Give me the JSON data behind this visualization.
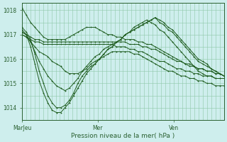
{
  "title": "",
  "xlabel": "Pression niveau de la mer( hPa )",
  "ylabel": "",
  "bg_color": "#ceeeed",
  "line_color": "#1e5c1e",
  "grid_color": "#8ec8a8",
  "axis_color": "#2a6030",
  "ylim": [
    1013.5,
    1018.3
  ],
  "xlim": [
    0,
    96
  ],
  "xtick_positions": [
    0,
    36,
    72
  ],
  "xtick_labels": [
    "MarJeu",
    "Mer",
    "Ven"
  ],
  "ytick_positions": [
    1014,
    1015,
    1016,
    1017,
    1018
  ],
  "series": [
    [
      1018.1,
      1017.8,
      1017.5,
      1017.3,
      1017.1,
      1016.9,
      1016.8,
      1016.8,
      1016.8,
      1016.8,
      1016.8,
      1016.9,
      1017.0,
      1017.1,
      1017.2,
      1017.3,
      1017.3,
      1017.3,
      1017.2,
      1017.1,
      1017.0,
      1017.0,
      1016.9,
      1016.9,
      1016.8,
      1016.8,
      1016.8,
      1016.7,
      1016.7,
      1016.6,
      1016.6,
      1016.5,
      1016.4,
      1016.3,
      1016.2,
      1016.1,
      1016.0,
      1015.9,
      1015.8,
      1015.8,
      1015.7,
      1015.6,
      1015.6,
      1015.5,
      1015.5,
      1015.4,
      1015.4,
      1015.3
    ],
    [
      1017.1,
      1017.0,
      1016.9,
      1016.8,
      1016.8,
      1016.7,
      1016.7,
      1016.7,
      1016.7,
      1016.7,
      1016.7,
      1016.7,
      1016.7,
      1016.7,
      1016.7,
      1016.7,
      1016.7,
      1016.7,
      1016.7,
      1016.7,
      1016.7,
      1016.7,
      1016.7,
      1016.7,
      1016.7,
      1016.6,
      1016.6,
      1016.6,
      1016.5,
      1016.5,
      1016.4,
      1016.4,
      1016.3,
      1016.2,
      1016.1,
      1016.0,
      1015.9,
      1015.9,
      1015.8,
      1015.7,
      1015.7,
      1015.6,
      1015.6,
      1015.5,
      1015.5,
      1015.4,
      1015.4,
      1015.3
    ],
    [
      1017.0,
      1016.9,
      1016.8,
      1016.7,
      1016.7,
      1016.6,
      1016.6,
      1016.6,
      1016.6,
      1016.6,
      1016.6,
      1016.6,
      1016.6,
      1016.6,
      1016.6,
      1016.6,
      1016.6,
      1016.6,
      1016.6,
      1016.6,
      1016.6,
      1016.6,
      1016.5,
      1016.5,
      1016.5,
      1016.4,
      1016.4,
      1016.3,
      1016.3,
      1016.2,
      1016.1,
      1016.0,
      1015.9,
      1015.9,
      1015.8,
      1015.7,
      1015.6,
      1015.6,
      1015.5,
      1015.5,
      1015.4,
      1015.4,
      1015.3,
      1015.3,
      1015.3,
      1015.2,
      1015.2,
      1015.2
    ],
    [
      1017.0,
      1016.9,
      1016.7,
      1016.5,
      1016.3,
      1016.2,
      1016.1,
      1015.9,
      1015.8,
      1015.7,
      1015.5,
      1015.4,
      1015.4,
      1015.4,
      1015.5,
      1015.6,
      1015.8,
      1015.9,
      1016.0,
      1016.1,
      1016.2,
      1016.3,
      1016.3,
      1016.3,
      1016.3,
      1016.3,
      1016.2,
      1016.2,
      1016.1,
      1016.0,
      1015.9,
      1015.8,
      1015.7,
      1015.6,
      1015.5,
      1015.5,
      1015.4,
      1015.3,
      1015.3,
      1015.2,
      1015.2,
      1015.1,
      1015.1,
      1015.0,
      1015.0,
      1014.9,
      1014.9,
      1014.9
    ],
    [
      1017.1,
      1017.0,
      1016.7,
      1016.3,
      1015.9,
      1015.6,
      1015.3,
      1015.1,
      1014.9,
      1014.8,
      1014.7,
      1014.8,
      1015.0,
      1015.2,
      1015.5,
      1015.7,
      1015.9,
      1016.1,
      1016.2,
      1016.4,
      1016.5,
      1016.6,
      1016.7,
      1016.8,
      1017.0,
      1017.1,
      1017.3,
      1017.4,
      1017.5,
      1017.6,
      1017.5,
      1017.4,
      1017.2,
      1017.1,
      1016.9,
      1016.7,
      1016.5,
      1016.3,
      1016.1,
      1015.9,
      1015.7,
      1015.5,
      1015.4,
      1015.3,
      1015.3,
      1015.2,
      1015.2,
      1015.2
    ],
    [
      1017.2,
      1017.0,
      1016.5,
      1015.8,
      1015.1,
      1014.6,
      1014.2,
      1013.9,
      1013.8,
      1013.8,
      1014.0,
      1014.2,
      1014.5,
      1014.8,
      1015.1,
      1015.4,
      1015.6,
      1015.8,
      1016.0,
      1016.2,
      1016.4,
      1016.5,
      1016.7,
      1016.8,
      1017.0,
      1017.1,
      1017.2,
      1017.3,
      1017.4,
      1017.5,
      1017.6,
      1017.7,
      1017.5,
      1017.4,
      1017.2,
      1017.1,
      1016.9,
      1016.7,
      1016.5,
      1016.3,
      1016.1,
      1015.9,
      1015.8,
      1015.7,
      1015.6,
      1015.5,
      1015.4,
      1015.3
    ],
    [
      1017.3,
      1017.1,
      1016.8,
      1016.2,
      1015.5,
      1015.0,
      1014.5,
      1014.2,
      1014.0,
      1014.0,
      1014.1,
      1014.3,
      1014.6,
      1015.0,
      1015.3,
      1015.5,
      1015.7,
      1015.8,
      1016.0,
      1016.2,
      1016.4,
      1016.5,
      1016.7,
      1016.8,
      1017.0,
      1017.1,
      1017.2,
      1017.3,
      1017.4,
      1017.5,
      1017.6,
      1017.7,
      1017.6,
      1017.5,
      1017.3,
      1017.2,
      1017.0,
      1016.8,
      1016.6,
      1016.4,
      1016.2,
      1016.0,
      1015.9,
      1015.8,
      1015.6,
      1015.5,
      1015.4,
      1015.3
    ]
  ]
}
